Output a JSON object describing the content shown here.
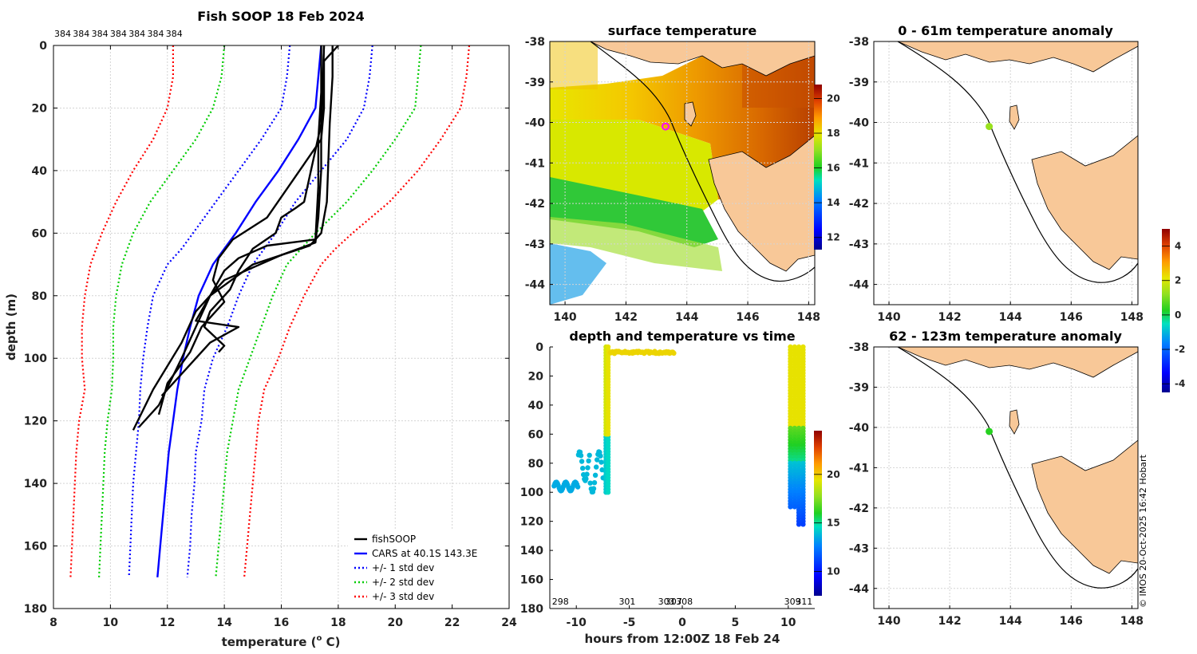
{
  "page": {
    "credit": "© IMOS 20-Oct-2025 16:42 Hobart"
  },
  "chart_data": [
    {
      "id": "profile",
      "type": "line",
      "title": "Fish SOOP 18 Feb 2024",
      "xlabel_main": "temperature (",
      "xlabel_sup": "o",
      "xlabel_end": " C)",
      "ylabel": "depth (m)",
      "xlim": [
        8,
        24
      ],
      "ylim": [
        0,
        180
      ],
      "xticks": [
        8,
        10,
        12,
        14,
        16,
        18,
        20,
        22,
        24
      ],
      "yticks": [
        0,
        20,
        40,
        60,
        80,
        100,
        120,
        140,
        160,
        180
      ],
      "top_labels": [
        "384",
        "384",
        "384",
        "384",
        "384",
        "384",
        "384"
      ],
      "depth": [
        0,
        10,
        20,
        30,
        40,
        50,
        60,
        65,
        70,
        80,
        90,
        100,
        110,
        120,
        130,
        140,
        150,
        160,
        170
      ],
      "series": [
        {
          "name": "fishSOOP",
          "color": "#000000",
          "style": "solid",
          "casts": [
            {
              "t": [
                18.0,
                17.5,
                17.5,
                17.5,
                17.4,
                17.4,
                17.3,
                17.2,
                16.0,
                14.0,
                13.0,
                12.5,
                11.5,
                10.8
              ],
              "d": [
                0,
                5,
                10,
                20,
                30,
                40,
                55,
                63,
                67,
                75,
                85,
                95,
                110,
                123
              ]
            },
            {
              "t": [
                17.4,
                17.4,
                17.3,
                17.3,
                17.2,
                15.5,
                14.5,
                14.0,
                13.5,
                13.0,
                12.5,
                11.7,
                11.0
              ],
              "d": [
                0,
                15,
                30,
                45,
                62,
                64,
                68,
                72,
                80,
                90,
                100,
                115,
                122
              ]
            },
            {
              "t": [
                17.8,
                17.8,
                17.7,
                17.6,
                17.4,
                17.0,
                15.0,
                13.5,
                13.0,
                14.5,
                13.5,
                12.5,
                11.8
              ],
              "d": [
                0,
                10,
                25,
                50,
                60,
                64,
                70,
                80,
                88,
                90,
                95,
                105,
                112
              ]
            },
            {
              "t": [
                17.5,
                17.4,
                15.5,
                14.3,
                13.8,
                13.6,
                14.0,
                13.2,
                12.8,
                12.0,
                11.7
              ],
              "d": [
                0,
                30,
                55,
                62,
                68,
                75,
                82,
                90,
                98,
                108,
                118
              ]
            },
            {
              "t": [
                17.5,
                17.4,
                16.8,
                16.5,
                16.0,
                15.8,
                15.0,
                14.5,
                14.2,
                13.5,
                13.3,
                14.0,
                13.8
              ],
              "d": [
                0,
                25,
                50,
                52,
                55,
                60,
                65,
                72,
                78,
                85,
                90,
                96,
                98
              ]
            }
          ]
        },
        {
          "name": "CARS at 40.1S 143.3E",
          "color": "#0000ff",
          "style": "solid",
          "t": [
            17.4,
            17.3,
            17.2,
            16.6,
            15.9,
            15.1,
            14.4,
            14.0,
            13.6,
            13.1,
            12.8,
            12.55,
            12.35,
            12.2,
            12.05,
            11.95,
            11.85,
            11.75,
            11.65
          ]
        },
        {
          "name": "+/- 1 std dev",
          "color": "#0000ff",
          "style": "dotted",
          "lo": [
            16.3,
            16.2,
            16.0,
            15.3,
            14.5,
            13.7,
            12.9,
            12.5,
            12.0,
            11.5,
            11.3,
            11.15,
            11.05,
            11.0,
            10.9,
            10.8,
            10.75,
            10.7,
            10.65
          ],
          "hi": [
            19.2,
            19.1,
            18.9,
            18.3,
            17.4,
            16.5,
            15.8,
            15.4,
            15.0,
            14.5,
            14.1,
            13.6,
            13.3,
            13.2,
            13.0,
            12.95,
            12.85,
            12.8,
            12.7
          ]
        },
        {
          "name": "+/- 2 std dev",
          "color": "#00cc00",
          "style": "dotted",
          "lo": [
            14.0,
            13.9,
            13.6,
            13.0,
            12.2,
            11.4,
            10.8,
            10.6,
            10.4,
            10.2,
            10.1,
            10.1,
            10.05,
            9.9,
            9.8,
            9.75,
            9.7,
            9.65,
            9.6
          ],
          "hi": [
            20.9,
            20.8,
            20.7,
            20.0,
            19.2,
            18.3,
            17.2,
            16.7,
            16.2,
            15.7,
            15.3,
            14.9,
            14.5,
            14.3,
            14.1,
            14.0,
            13.9,
            13.8,
            13.7
          ]
        },
        {
          "name": "+/- 3 std dev",
          "color": "#ff0000",
          "style": "dotted",
          "lo": [
            12.2,
            12.2,
            12.0,
            11.5,
            10.8,
            10.2,
            9.7,
            9.5,
            9.3,
            9.1,
            9.0,
            9.0,
            9.1,
            8.9,
            8.8,
            8.75,
            8.7,
            8.65,
            8.6
          ],
          "hi": [
            22.6,
            22.5,
            22.3,
            21.6,
            20.8,
            19.8,
            18.5,
            17.9,
            17.4,
            16.8,
            16.3,
            15.9,
            15.4,
            15.2,
            15.1,
            15.0,
            14.9,
            14.8,
            14.7
          ]
        }
      ],
      "legend": [
        "fishSOOP",
        "CARS at 40.1S 143.3E",
        "+/- 1 std dev",
        "+/- 2 std dev",
        "+/- 3 std dev"
      ],
      "legend_position": "bottom-right"
    },
    {
      "id": "sst",
      "type": "heatmap",
      "title": "surface temperature",
      "xlim": [
        139.5,
        148.2
      ],
      "ylim": [
        -44.5,
        -38
      ],
      "xticks": [
        140,
        142,
        144,
        146,
        148
      ],
      "yticks": [
        -38,
        -39,
        -40,
        -41,
        -42,
        -43,
        -44
      ],
      "colorbar_ticks": [
        12,
        14,
        16,
        18,
        20
      ],
      "colorbar_range": [
        11.3,
        20.8
      ],
      "marker": {
        "lon": 143.3,
        "lat": -40.1,
        "color": "#ff00ff"
      }
    },
    {
      "id": "depth_time",
      "type": "scatter",
      "title": "depth and temperature vs time",
      "xlabel": "hours from 12:00Z 18 Feb 24",
      "xlim": [
        -12.5,
        12.5
      ],
      "ylim": [
        0,
        180
      ],
      "xticks": [
        -10,
        -5,
        0,
        5,
        10
      ],
      "yticks": [
        0,
        20,
        40,
        60,
        80,
        100,
        120,
        140,
        160,
        180
      ],
      "colorbar_ticks": [
        10,
        15,
        20
      ],
      "colorbar_range": [
        7.5,
        24.5
      ],
      "station_labels": [
        {
          "hour": -11.5,
          "text": "298"
        },
        {
          "hour": -5.2,
          "text": "301"
        },
        {
          "hour": -1.5,
          "text": "303"
        },
        {
          "hour": -0.8,
          "text": "307"
        },
        {
          "hour": 0.2,
          "text": "308"
        },
        {
          "hour": 10.4,
          "text": "309"
        },
        {
          "hour": 11.5,
          "text": "311"
        }
      ]
    },
    {
      "id": "anom_shallow",
      "type": "scatter",
      "title": "0 - 61m temperature anomaly",
      "xlim": [
        139.5,
        148.2
      ],
      "ylim": [
        -44.5,
        -38
      ],
      "xticks": [
        140,
        142,
        144,
        146,
        148
      ],
      "yticks": [
        -38,
        -39,
        -40,
        -41,
        -42,
        -43,
        -44
      ],
      "points": [
        {
          "lon": 143.3,
          "lat": -40.1,
          "anomaly": 1.3
        }
      ]
    },
    {
      "id": "anom_deep",
      "type": "scatter",
      "title": "62 - 123m temperature anomaly",
      "xlim": [
        139.5,
        148.2
      ],
      "ylim": [
        -44.5,
        -38
      ],
      "xticks": [
        140,
        142,
        144,
        146,
        148
      ],
      "yticks": [
        -38,
        -39,
        -40,
        -41,
        -42,
        -43,
        -44
      ],
      "points": [
        {
          "lon": 143.3,
          "lat": -40.1,
          "anomaly": 0.3
        }
      ],
      "colorbar_ticks": [
        -4,
        -2,
        0,
        2,
        4
      ],
      "colorbar_range": [
        -4.5,
        5
      ]
    }
  ]
}
